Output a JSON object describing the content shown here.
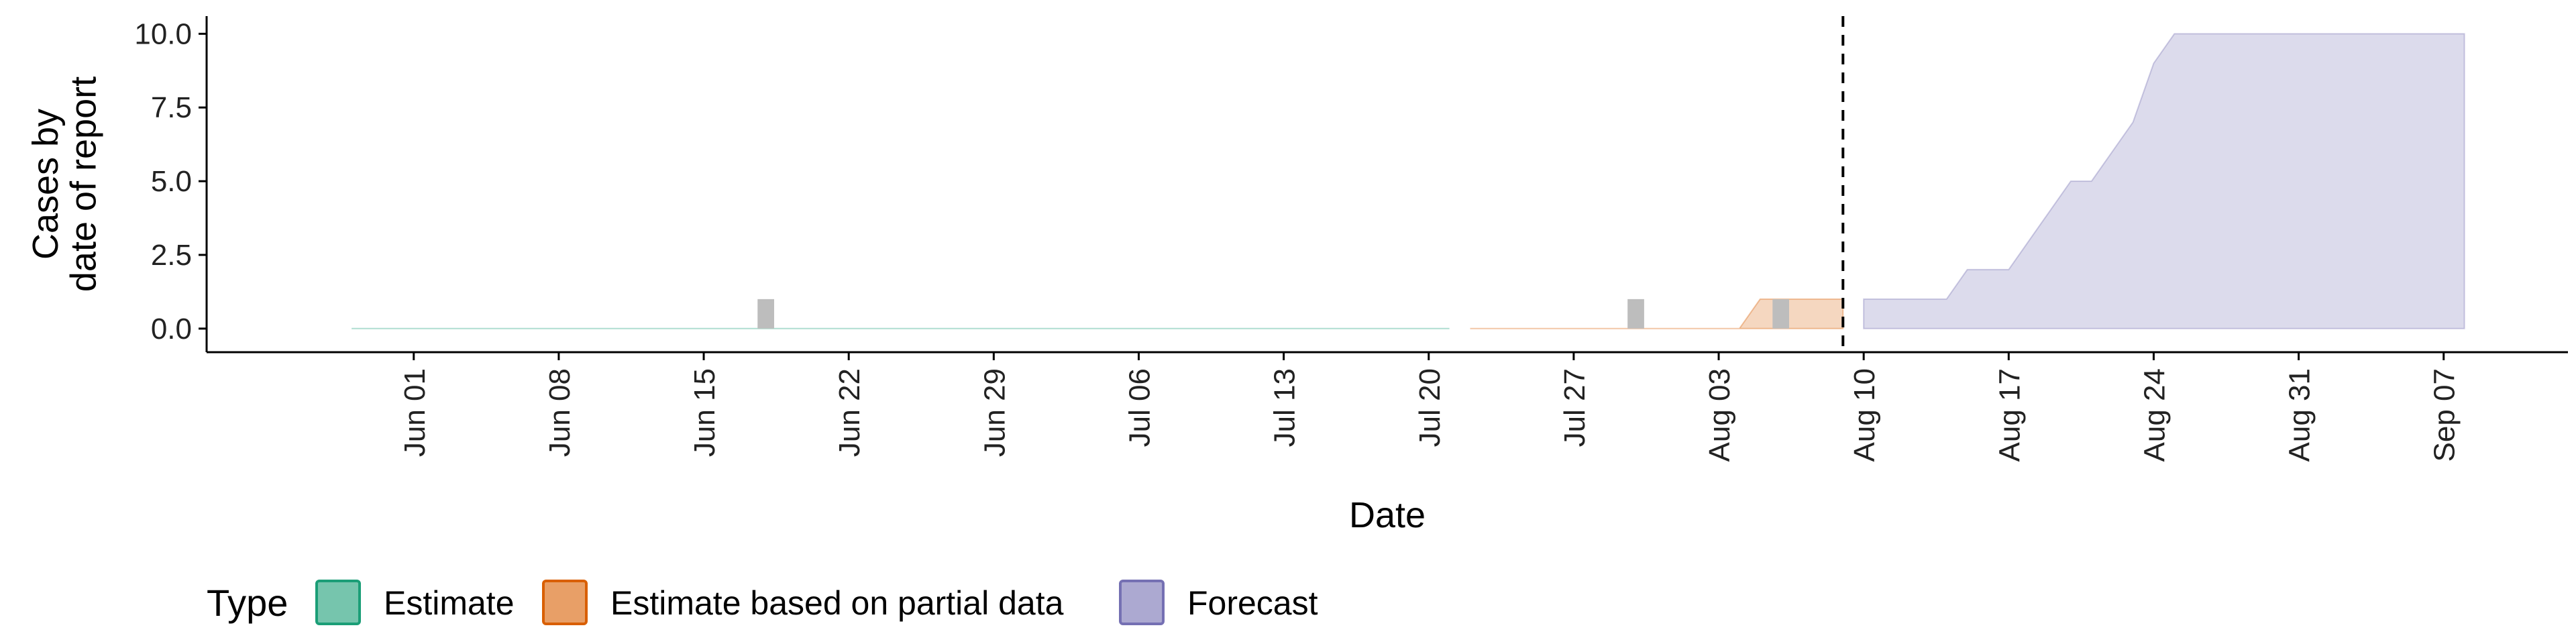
{
  "chart_data": {
    "type": "area",
    "xlabel": "Date",
    "ylabel_lines": [
      "Cases by",
      "date of report"
    ],
    "ylim": [
      -0.8,
      10.6
    ],
    "xlim": [
      "2021-05-22",
      "2021-09-13"
    ],
    "y_ticks": [
      0.0,
      2.5,
      5.0,
      7.5,
      10.0
    ],
    "y_tick_labels": [
      "0.0",
      "2.5",
      "5.0",
      "7.5",
      "10.0"
    ],
    "x_ticks": [
      "2021-06-01",
      "2021-06-08",
      "2021-06-15",
      "2021-06-22",
      "2021-06-29",
      "2021-07-06",
      "2021-07-13",
      "2021-07-20",
      "2021-07-27",
      "2021-08-03",
      "2021-08-10",
      "2021-08-17",
      "2021-08-24",
      "2021-08-31",
      "2021-09-07"
    ],
    "x_tick_labels": [
      "Jun 01",
      "Jun 08",
      "Jun 15",
      "Jun 22",
      "Jun 29",
      "Jul 06",
      "Jul 13",
      "Jul 20",
      "Jul 27",
      "Aug 03",
      "Aug 10",
      "Aug 17",
      "Aug 24",
      "Aug 31",
      "Sep 07"
    ],
    "forecast_date": "2021-08-09",
    "observed_cases": [
      {
        "date": "2021-06-18",
        "value": 1
      },
      {
        "date": "2021-07-30",
        "value": 1
      },
      {
        "date": "2021-08-06",
        "value": 1
      }
    ],
    "series": [
      {
        "name": "Estimate",
        "color": "#1b9e77",
        "points": [
          {
            "date": "2021-05-29",
            "lower": 0,
            "upper": 0
          },
          {
            "date": "2021-07-21",
            "lower": 0,
            "upper": 0
          }
        ]
      },
      {
        "name": "Estimate based on partial data",
        "color": "#d95f02",
        "points": [
          {
            "date": "2021-07-22",
            "lower": 0,
            "upper": 0
          },
          {
            "date": "2021-08-04",
            "lower": 0,
            "upper": 0
          },
          {
            "date": "2021-08-05",
            "lower": 0,
            "upper": 1
          },
          {
            "date": "2021-08-06",
            "lower": 0,
            "upper": 1
          },
          {
            "date": "2021-08-07",
            "lower": 0,
            "upper": 1
          },
          {
            "date": "2021-08-08",
            "lower": 0,
            "upper": 1
          },
          {
            "date": "2021-08-09",
            "lower": 0,
            "upper": 1
          }
        ]
      },
      {
        "name": "Forecast",
        "color": "#7570b3",
        "points": [
          {
            "date": "2021-08-10",
            "lower": 0,
            "upper": 1
          },
          {
            "date": "2021-08-14",
            "lower": 0,
            "upper": 1
          },
          {
            "date": "2021-08-15",
            "lower": 0,
            "upper": 2
          },
          {
            "date": "2021-08-17",
            "lower": 0,
            "upper": 2
          },
          {
            "date": "2021-08-20",
            "lower": 0,
            "upper": 5
          },
          {
            "date": "2021-08-21",
            "lower": 0,
            "upper": 5
          },
          {
            "date": "2021-08-23",
            "lower": 0,
            "upper": 7
          },
          {
            "date": "2021-08-24",
            "lower": 0,
            "upper": 9
          },
          {
            "date": "2021-08-25",
            "lower": 0,
            "upper": 10
          },
          {
            "date": "2021-09-08",
            "lower": 0,
            "upper": 10
          }
        ]
      }
    ],
    "legend": {
      "title": "Type",
      "placement": "bottom-left",
      "entries": [
        "Estimate",
        "Estimate based on partial data",
        "Forecast"
      ]
    },
    "colors": {
      "observed": "#bdbdbd",
      "axis": "#000000",
      "forecast_line": "#000000"
    }
  }
}
